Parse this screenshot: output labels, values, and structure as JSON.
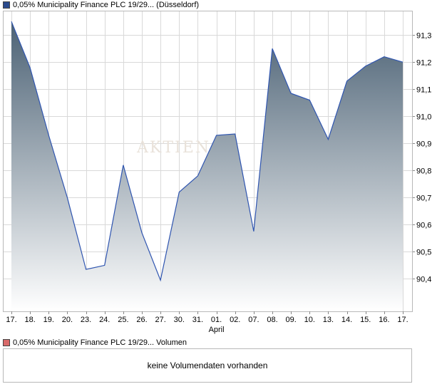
{
  "legend": {
    "price": "0,05% Municipality Finance PLC 19/29... (Düsseldorf)",
    "volume": "0,05% Municipality Finance PLC 19/29... Volumen"
  },
  "volume_panel": {
    "message": "keine Volumendaten vorhanden"
  },
  "colors": {
    "line": "#2f55b0",
    "fill_top": "#4c6275",
    "fill_bottom": "#ffffff",
    "grid": "#d9d9d9",
    "axis": "#888888"
  },
  "chart_data": {
    "type": "area",
    "x": [
      "17.",
      "18.",
      "19.",
      "20.",
      "23.",
      "24.",
      "25.",
      "26.",
      "27.",
      "30.",
      "31.",
      "01.",
      "02.",
      "07.",
      "08.",
      "09.",
      "10.",
      "13.",
      "14.",
      "15.",
      "16.",
      "17."
    ],
    "values": [
      91.35,
      91.18,
      90.93,
      90.7,
      90.435,
      90.45,
      90.82,
      90.57,
      90.395,
      90.72,
      90.78,
      90.93,
      90.935,
      90.575,
      91.25,
      91.085,
      91.06,
      90.915,
      91.13,
      91.185,
      91.22,
      91.2
    ],
    "month_labels": [
      {
        "index": 11,
        "label": "April"
      }
    ],
    "y_ticks": [
      "90,4",
      "90,5",
      "90,6",
      "90,7",
      "90,8",
      "90,9",
      "91,0",
      "91,1",
      "91,2",
      "91,3"
    ],
    "y_tick_values": [
      90.4,
      90.5,
      90.6,
      90.7,
      90.8,
      90.9,
      91.0,
      91.1,
      91.2,
      91.3
    ],
    "ylim": [
      90.28,
      91.39
    ],
    "grid": true,
    "y_axis_side": "right",
    "watermark": "AKTIEN"
  }
}
